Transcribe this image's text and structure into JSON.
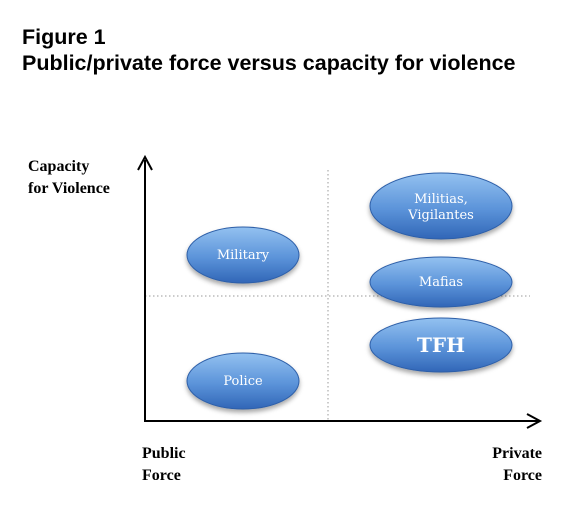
{
  "figure": {
    "title_line1": "Figure 1",
    "title_line2": "Public/private force versus capacity for violence"
  },
  "axes": {
    "y_label_line1": "Capacity",
    "y_label_line2": "for Violence",
    "x_left_line1": "Public",
    "x_left_line2": "Force",
    "x_right_line1": "Private",
    "x_right_line2": "Force"
  },
  "nodes": {
    "military": "Military",
    "police": "Police",
    "militias_line1": "Militias,",
    "militias_line2": "Vigilantes",
    "mafias": "Mafias",
    "tfh": "TFH"
  },
  "colors": {
    "node_light": "#7fb3ea",
    "node_dark": "#3166b7",
    "node_border": "#2d5fa8",
    "axis": "#000000",
    "divider": "#999999"
  }
}
